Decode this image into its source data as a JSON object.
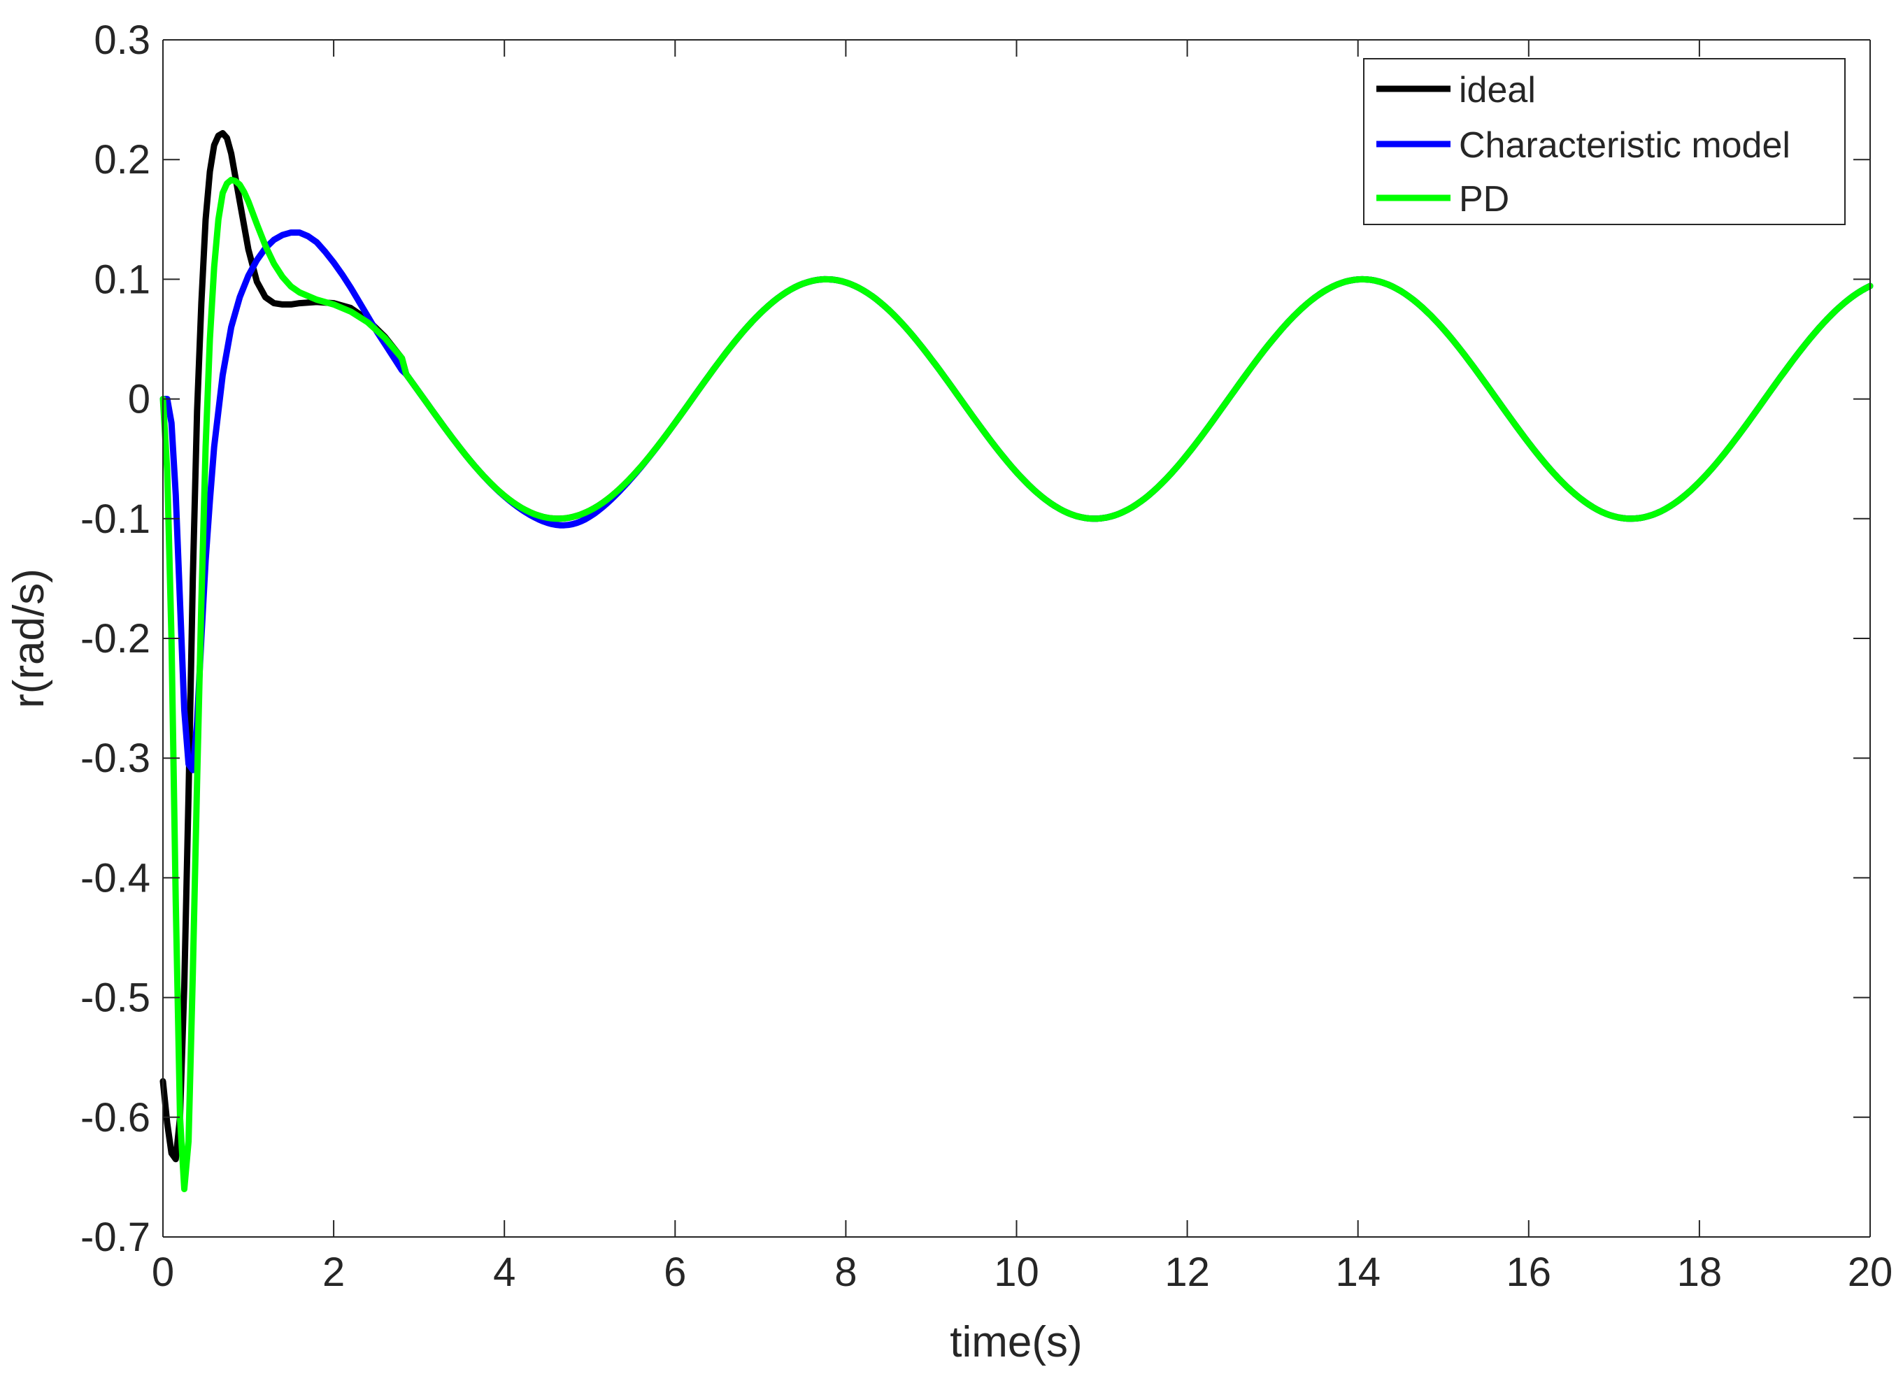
{
  "chart_data": {
    "type": "line",
    "title": "",
    "xlabel": "time(s)",
    "ylabel": "r(rad/s)",
    "xlim": [
      0,
      20
    ],
    "ylim": [
      -0.7,
      0.3
    ],
    "xticks": [
      0,
      2,
      4,
      6,
      8,
      10,
      12,
      14,
      16,
      18,
      20
    ],
    "yticks": [
      -0.7,
      -0.6,
      -0.5,
      -0.4,
      -0.3,
      -0.2,
      -0.1,
      0,
      0.1,
      0.2,
      0.3
    ],
    "xtick_labels": [
      "0",
      "2",
      "4",
      "6",
      "8",
      "10",
      "12",
      "14",
      "16",
      "18",
      "20"
    ],
    "ytick_labels": [
      "-0.7",
      "-0.6",
      "-0.5",
      "-0.4",
      "-0.3",
      "-0.2",
      "-0.1",
      "0",
      "0.1",
      "0.2",
      "0.3"
    ],
    "grid": false,
    "legend_position": "top-right",
    "series": [
      {
        "name": "ideal",
        "color": "#000000",
        "x": [
          0,
          0.05,
          0.1,
          0.15,
          0.2,
          0.25,
          0.3,
          0.35,
          0.4,
          0.45,
          0.5,
          0.55,
          0.6,
          0.65,
          0.7,
          0.75,
          0.8,
          0.9,
          1.0,
          1.1,
          1.2,
          1.3,
          1.4,
          1.5,
          1.6,
          1.8,
          2.0,
          2.2,
          2.4,
          2.6,
          2.8
        ],
        "y": [
          -0.57,
          -0.605,
          -0.63,
          -0.635,
          -0.6,
          -0.49,
          -0.33,
          -0.15,
          -0.01,
          0.08,
          0.15,
          0.19,
          0.212,
          0.22,
          0.222,
          0.218,
          0.205,
          0.165,
          0.125,
          0.098,
          0.085,
          0.08,
          0.079,
          0.079,
          0.08,
          0.081,
          0.08,
          0.076,
          0.066,
          0.052,
          0.034
        ]
      },
      {
        "name": "Characteristic model",
        "color": "#0000ff",
        "x": [
          0,
          0.05,
          0.1,
          0.15,
          0.2,
          0.25,
          0.3,
          0.35,
          0.4,
          0.45,
          0.5,
          0.55,
          0.6,
          0.7,
          0.8,
          0.9,
          1.0,
          1.1,
          1.2,
          1.3,
          1.4,
          1.5,
          1.6,
          1.7,
          1.8,
          1.9,
          2.0,
          2.1,
          2.2,
          2.3,
          2.4,
          2.5,
          2.6,
          2.7,
          2.8
        ],
        "y": [
          0,
          0,
          -0.02,
          -0.08,
          -0.17,
          -0.26,
          -0.305,
          -0.31,
          -0.27,
          -0.2,
          -0.135,
          -0.085,
          -0.04,
          0.02,
          0.06,
          0.085,
          0.103,
          0.116,
          0.126,
          0.133,
          0.137,
          0.139,
          0.139,
          0.136,
          0.131,
          0.123,
          0.114,
          0.104,
          0.093,
          0.081,
          0.069,
          0.057,
          0.046,
          0.035,
          0.024
        ]
      },
      {
        "name": "PD",
        "color": "#00ff00",
        "x": [
          0,
          0.05,
          0.1,
          0.15,
          0.2,
          0.25,
          0.3,
          0.35,
          0.4,
          0.45,
          0.5,
          0.55,
          0.6,
          0.65,
          0.7,
          0.75,
          0.8,
          0.85,
          0.9,
          0.95,
          1.0,
          1.1,
          1.2,
          1.3,
          1.4,
          1.5,
          1.6,
          1.8,
          2.0,
          2.2,
          2.4,
          2.6,
          2.8
        ],
        "y": [
          0,
          -0.06,
          -0.2,
          -0.42,
          -0.6,
          -0.66,
          -0.62,
          -0.48,
          -0.32,
          -0.17,
          -0.04,
          0.05,
          0.11,
          0.15,
          0.172,
          0.18,
          0.183,
          0.182,
          0.179,
          0.173,
          0.165,
          0.146,
          0.128,
          0.113,
          0.102,
          0.094,
          0.089,
          0.083,
          0.079,
          0.073,
          0.064,
          0.051,
          0.034
        ]
      }
    ],
    "steady_state": {
      "form": "A*sin(omega*(t - t_ref))",
      "amplitude": 0.1,
      "omega": 1.0,
      "t_ref": 6.2,
      "t_start": 2.8,
      "t_end": 20,
      "note": "All three series coincide after t = 2.8 s; blue minimum near t = 4.8 s reaches -0.105"
    },
    "blue_trough_bump": {
      "t_center": 4.8,
      "extra_depth": 0.006,
      "width": 0.5
    }
  }
}
